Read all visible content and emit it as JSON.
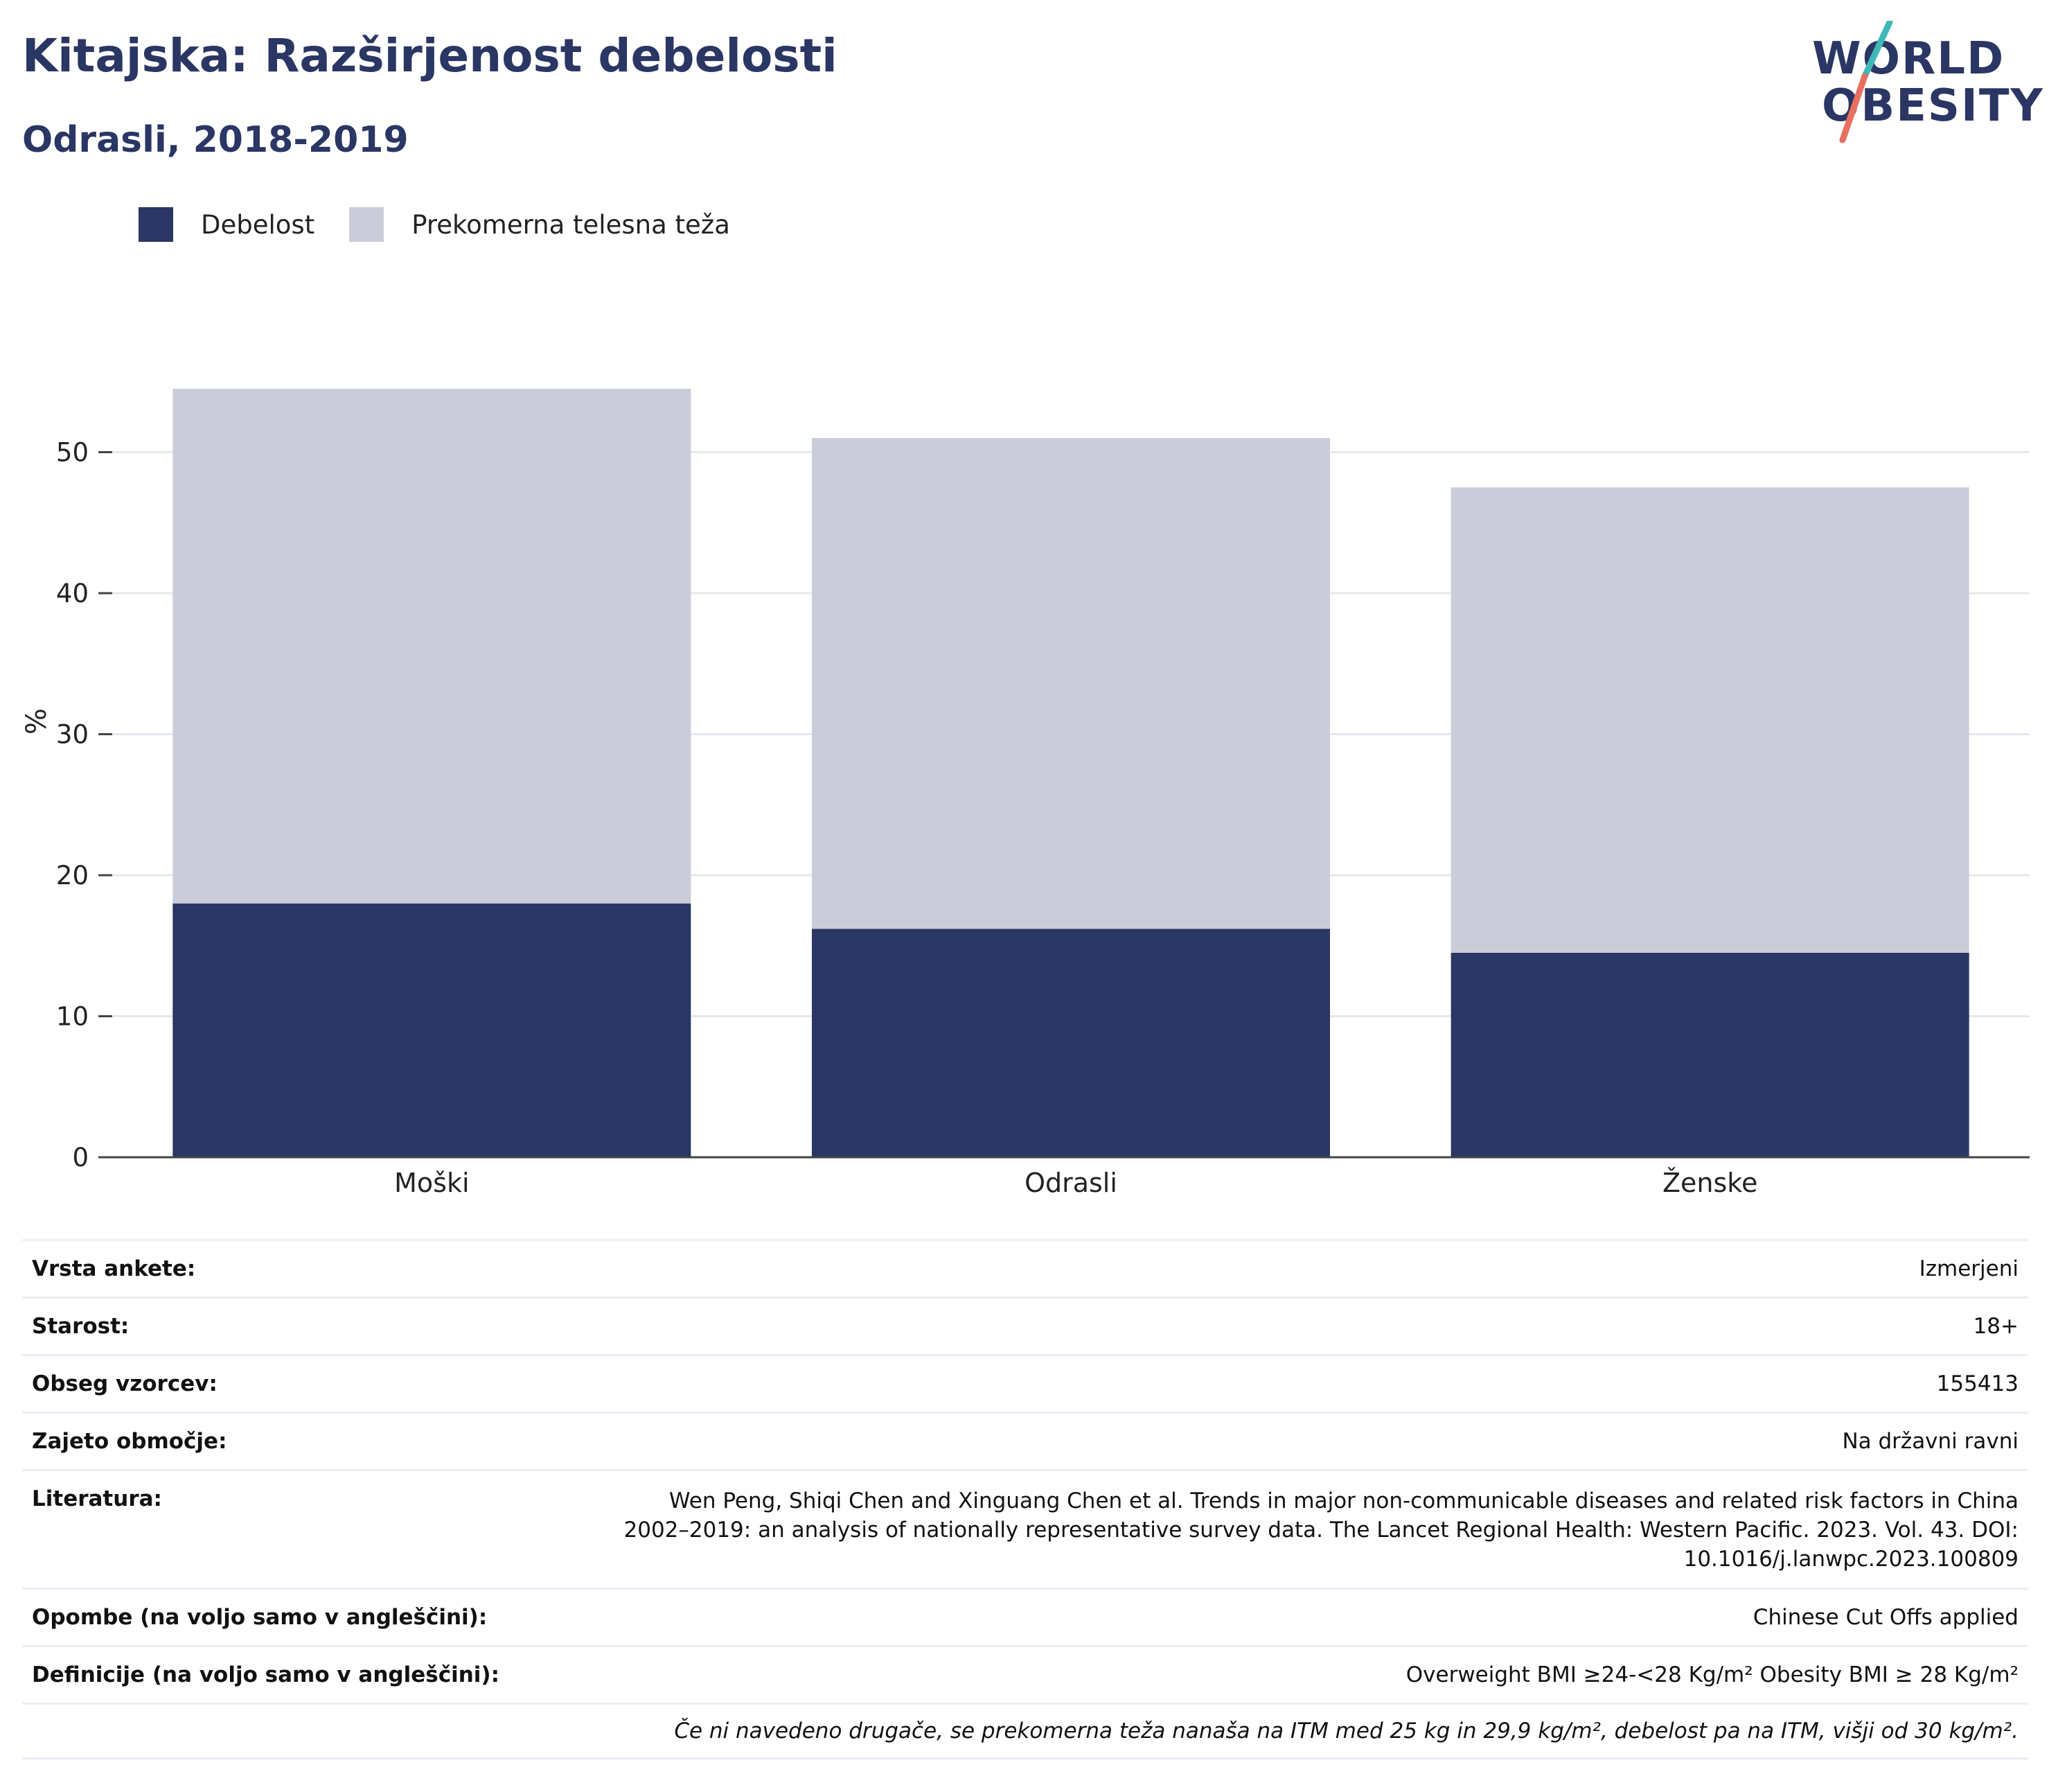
{
  "header": {
    "title": "Kitajska: Razširjenost debelosti",
    "subtitle": "Odrasli, 2018-2019"
  },
  "logo": {
    "line1": "WORLD",
    "line2": "OBESITY",
    "colors": {
      "text": "#2a3663",
      "slash_top": "#3fb8b8",
      "slash_bottom": "#e8705f"
    }
  },
  "legend": [
    {
      "label": "Debelost",
      "color": "#2a3663"
    },
    {
      "label": "Prekomerna telesna teža",
      "color": "#cacdd9"
    }
  ],
  "chart_data": {
    "type": "bar",
    "stacked": true,
    "categories": [
      "Moški",
      "Odrasli",
      "Ženske"
    ],
    "series": [
      {
        "name": "Debelost",
        "color": "#2a3663",
        "values": [
          18.0,
          16.2,
          14.5
        ]
      },
      {
        "name": "Prekomerna telesna teža",
        "color": "#cacdd9",
        "values": [
          36.5,
          34.8,
          33.0
        ]
      }
    ],
    "ylabel": "%",
    "ylim": [
      0,
      55
    ],
    "yticks": [
      0,
      10,
      20,
      30,
      40,
      50
    ],
    "grid": true,
    "legend_position": "top-left"
  },
  "info": {
    "rows": [
      {
        "label": "Vrsta ankete:",
        "value": "Izmerjeni"
      },
      {
        "label": "Starost:",
        "value": "18+"
      },
      {
        "label": "Obseg vzorcev:",
        "value": "155413"
      },
      {
        "label": "Zajeto območje:",
        "value": "Na državni ravni"
      },
      {
        "label": "Literatura:",
        "value_lines": [
          "Wen Peng, Shiqi Chen and Xinguang Chen et al. Trends in major non-communicable diseases and related risk factors in China",
          "2002–2019: an analysis of nationally representative survey data. The Lancet Regional Health: Western Pacific. 2023. Vol. 43. DOI:",
          "10.1016/j.lanwpc.2023.100809"
        ]
      },
      {
        "label": "Opombe (na voljo samo v angleščini):",
        "value": "Chinese Cut Offs applied"
      },
      {
        "label": "Definicije (na voljo samo v angleščini):",
        "value": "Overweight BMI ≥24-<28 Kg/m² Obesity BMI ≥ 28 Kg/m²"
      }
    ],
    "note": "Če ni navedeno drugače, se prekomerna teža nanaša na ITM med 25 kg in 29,9 kg/m², debelost pa na ITM, višji od 30 kg/m²."
  }
}
